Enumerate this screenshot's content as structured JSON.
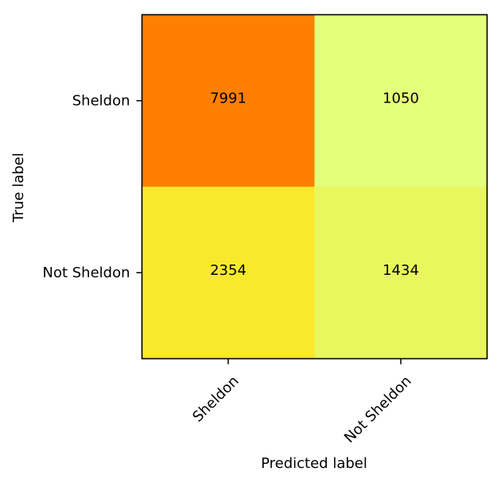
{
  "chart_data": {
    "type": "heatmap",
    "title": "",
    "xlabel": "Predicted label",
    "ylabel": "True label",
    "x_categories": [
      "Sheldon",
      "Not Sheldon"
    ],
    "y_categories": [
      "Sheldon",
      "Not Sheldon"
    ],
    "values": [
      [
        7991,
        1050
      ],
      [
        2354,
        1434
      ]
    ],
    "colormap": "Wistia",
    "cell_colors": [
      [
        "#ff8000",
        "#e4ff7a"
      ],
      [
        "#f8e92d",
        "#e8f75e"
      ]
    ],
    "x_tick_rotation_deg": 45,
    "grid": false,
    "colorbar": false
  }
}
